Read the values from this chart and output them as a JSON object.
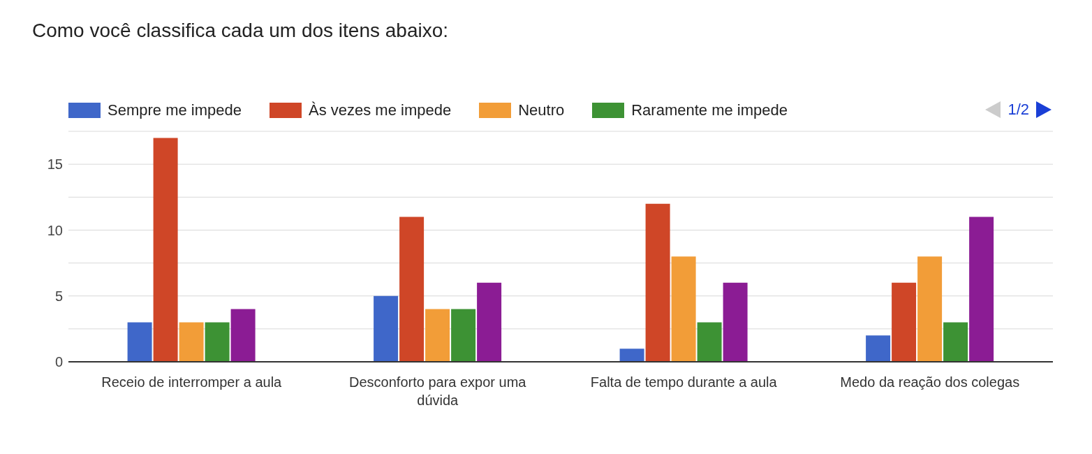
{
  "chart_data": {
    "type": "bar",
    "title": "Como você classifica cada um dos itens abaixo:",
    "categories": [
      "Receio de interromper a aula",
      "Desconforto para expor uma dúvida",
      "Falta de tempo durante a aula",
      "Medo da reação dos colegas"
    ],
    "series": [
      {
        "name": "Sempre me impede",
        "color": "#3f67c9",
        "values": [
          3,
          5,
          1,
          2
        ]
      },
      {
        "name": "Às vezes me impede",
        "color": "#cf4627",
        "values": [
          17,
          11,
          12,
          6
        ]
      },
      {
        "name": "Neutro",
        "color": "#f29d38",
        "values": [
          3,
          4,
          8,
          8
        ]
      },
      {
        "name": "Raramente me impede",
        "color": "#3d9234",
        "values": [
          3,
          4,
          3,
          3
        ]
      },
      {
        "color": "#8b1c94",
        "values": [
          4,
          6,
          6,
          11
        ]
      }
    ],
    "ylim": [
      0,
      17.5
    ],
    "yticks": [
      0,
      {
        "value": 2.5,
        "label": null
      },
      5,
      {
        "value": 7.5,
        "label": null
      },
      10,
      {
        "value": 12.5,
        "label": null
      },
      15
    ],
    "grid": "y",
    "legend": "top",
    "annotations": [
      "1/2"
    ]
  }
}
